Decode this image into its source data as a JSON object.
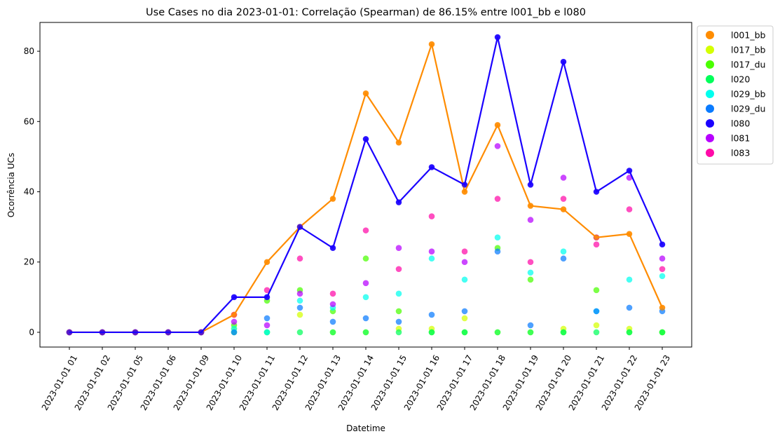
{
  "chart_data": {
    "type": "scatter",
    "title": "Use Cases no dia 2023-01-01: Correlação (Spearman) de 86.15% entre l001_bb e l080",
    "xlabel": "Datetime",
    "ylabel": "Ocorrência UCs",
    "categories": [
      "2023-01-01 01",
      "2023-01-01 02",
      "2023-01-01 05",
      "2023-01-01 06",
      "2023-01-01 09",
      "2023-01-01 10",
      "2023-01-01 11",
      "2023-01-01 12",
      "2023-01-01 13",
      "2023-01-01 14",
      "2023-01-01 15",
      "2023-01-01 16",
      "2023-01-01 17",
      "2023-01-01 18",
      "2023-01-01 19",
      "2023-01-01 20",
      "2023-01-01 21",
      "2023-01-01 22",
      "2023-01-01 23"
    ],
    "ylim": [
      -4.2,
      88.2
    ],
    "yticks": [
      0,
      20,
      40,
      60,
      80
    ],
    "grid": false,
    "legend_position": "outside-top-right",
    "series": [
      {
        "name": "l001_bb",
        "color": "#ff8c00",
        "line": true,
        "values": [
          0,
          0,
          0,
          0,
          0,
          5,
          20,
          30,
          38,
          68,
          54,
          82,
          40,
          59,
          36,
          35,
          27,
          28,
          7
        ]
      },
      {
        "name": "l017_bb",
        "color": "#d4ff00",
        "line": false,
        "values": [
          0,
          0,
          0,
          0,
          0,
          1,
          0,
          5,
          0,
          0,
          1,
          1,
          4,
          0,
          0,
          1,
          2,
          1,
          0
        ]
      },
      {
        "name": "l017_du",
        "color": "#4aff00",
        "line": false,
        "values": [
          0,
          0,
          0,
          0,
          0,
          2,
          9,
          12,
          6,
          21,
          6,
          0,
          0,
          24,
          15,
          0,
          12,
          0,
          0
        ]
      },
      {
        "name": "l020",
        "color": "#00ff5a",
        "line": false,
        "values": [
          0,
          0,
          0,
          0,
          0,
          0,
          0,
          0,
          0,
          0,
          0,
          0,
          0,
          0,
          0,
          0,
          0,
          0,
          0
        ]
      },
      {
        "name": "l029_bb",
        "color": "#00ffee",
        "line": false,
        "values": [
          0,
          0,
          0,
          0,
          0,
          1,
          0,
          9,
          7,
          10,
          11,
          21,
          15,
          27,
          17,
          23,
          6,
          15,
          16
        ]
      },
      {
        "name": "l029_du",
        "color": "#0a7bff",
        "line": false,
        "values": [
          0,
          0,
          0,
          0,
          0,
          0,
          4,
          7,
          3,
          4,
          3,
          5,
          6,
          23,
          2,
          21,
          6,
          7,
          6
        ]
      },
      {
        "name": "l080",
        "color": "#1a00ff",
        "line": true,
        "values": [
          0,
          0,
          0,
          0,
          0,
          10,
          10,
          30,
          24,
          55,
          37,
          47,
          42,
          84,
          42,
          77,
          40,
          46,
          25
        ]
      },
      {
        "name": "l081",
        "color": "#b700ff",
        "line": false,
        "values": [
          0,
          0,
          0,
          0,
          0,
          3,
          2,
          11,
          8,
          14,
          24,
          23,
          20,
          53,
          32,
          44,
          27,
          44,
          21
        ]
      },
      {
        "name": "l083",
        "color": "#ff0aa8",
        "line": false,
        "values": [
          0,
          0,
          0,
          0,
          0,
          5,
          12,
          21,
          11,
          29,
          18,
          33,
          23,
          38,
          20,
          38,
          25,
          35,
          18
        ]
      }
    ]
  }
}
